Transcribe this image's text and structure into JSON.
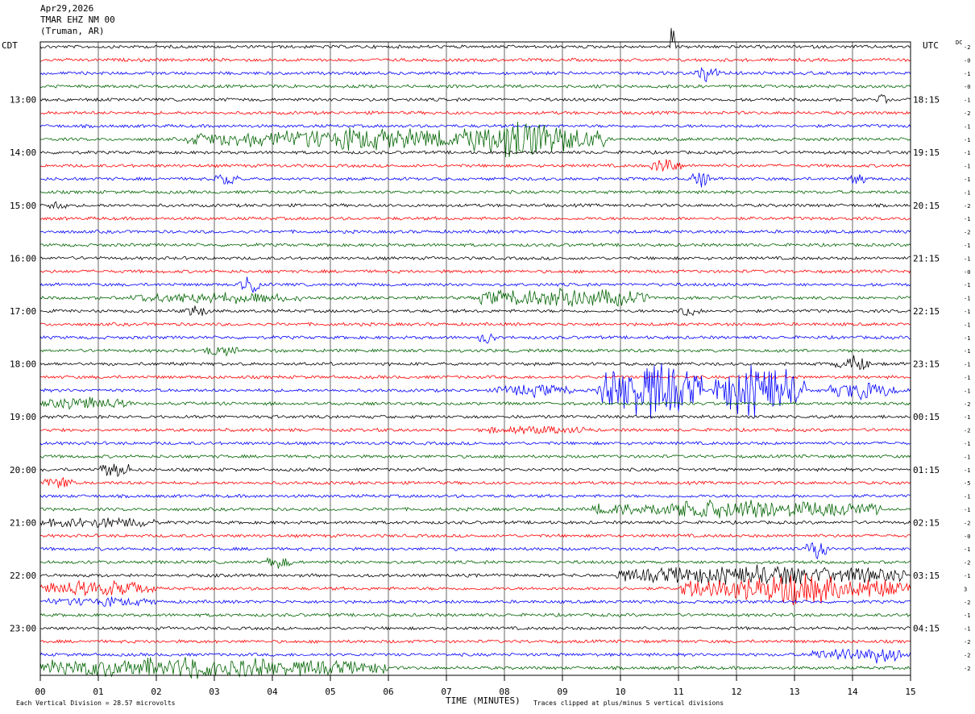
{
  "header": {
    "date": "Apr29,2026",
    "station": "TMAR EHZ NM 00",
    "location": "(Truman, AR)"
  },
  "left_zone_label": "CDT",
  "right_zone_label": "UTC",
  "dc_label": "DC",
  "footer": {
    "scale_note": "Each Vertical Division =   28.57 microvolts",
    "clip_note": "Traces clipped at plus/minus 5 vertical divisions"
  },
  "colors": [
    "#000000",
    "#ff0000",
    "#0000ff",
    "#006400"
  ],
  "chart_data": {
    "type": "line",
    "xlabel": "TIME (MINUTES)",
    "xlim": [
      0,
      15
    ],
    "x_ticks": [
      "00",
      "01",
      "02",
      "03",
      "04",
      "05",
      "06",
      "07",
      "08",
      "09",
      "10",
      "11",
      "12",
      "13",
      "14",
      "15"
    ],
    "row_count": 48,
    "left_hour_labels": [
      {
        "row": 4,
        "text": "13:00"
      },
      {
        "row": 8,
        "text": "14:00"
      },
      {
        "row": 12,
        "text": "15:00"
      },
      {
        "row": 16,
        "text": "16:00"
      },
      {
        "row": 20,
        "text": "17:00"
      },
      {
        "row": 24,
        "text": "18:00"
      },
      {
        "row": 28,
        "text": "19:00"
      },
      {
        "row": 32,
        "text": "20:00"
      },
      {
        "row": 36,
        "text": "21:00"
      },
      {
        "row": 40,
        "text": "22:00"
      },
      {
        "row": 44,
        "text": "23:00"
      }
    ],
    "right_hour_labels": [
      {
        "row": 4,
        "text": "18:15"
      },
      {
        "row": 8,
        "text": "19:15"
      },
      {
        "row": 12,
        "text": "20:15"
      },
      {
        "row": 16,
        "text": "21:15"
      },
      {
        "row": 20,
        "text": "22:15"
      },
      {
        "row": 24,
        "text": "23:15"
      },
      {
        "row": 28,
        "text": "00:15"
      },
      {
        "row": 32,
        "text": "01:15"
      },
      {
        "row": 36,
        "text": "02:15"
      },
      {
        "row": 40,
        "text": "03:15"
      },
      {
        "row": 44,
        "text": "04:15"
      }
    ],
    "dc_offsets": [
      "-2",
      "-0",
      "-1",
      "-0",
      "-1",
      "-2",
      "-1",
      "-1",
      "-1",
      "-1",
      "-1",
      "-1",
      "-2",
      "-1",
      "-2",
      "-1",
      "-1",
      "-0",
      "-1",
      "-1",
      "-1",
      "-1",
      "-1",
      "-1",
      "-1",
      "-1",
      "-1",
      "-2",
      "-1",
      "-2",
      "-1",
      "-1",
      "-1",
      "-5",
      "-1",
      "-1",
      "-2",
      "-0",
      "-1",
      "-2",
      "-1",
      "3",
      "-2",
      "-1",
      "-1",
      "-2",
      "-2",
      "-2"
    ],
    "bursts": [
      {
        "row": 0,
        "x": 10.9,
        "w": 0.08,
        "amp": 4.5
      },
      {
        "row": 2,
        "x": 11.5,
        "w": 0.5,
        "amp": 1.2
      },
      {
        "row": 4,
        "x": 14.5,
        "w": 0.2,
        "amp": 1.0
      },
      {
        "row": 7,
        "x": 5.5,
        "w": 6.0,
        "amp": 1.6
      },
      {
        "row": 7,
        "x": 8.5,
        "w": 2.5,
        "amp": 2.6
      },
      {
        "row": 9,
        "x": 10.8,
        "w": 0.6,
        "amp": 1.2
      },
      {
        "row": 10,
        "x": 3.2,
        "w": 0.4,
        "amp": 1.0
      },
      {
        "row": 10,
        "x": 11.4,
        "w": 0.4,
        "amp": 1.2
      },
      {
        "row": 10,
        "x": 14.1,
        "w": 0.3,
        "amp": 0.9
      },
      {
        "row": 12,
        "x": 0.3,
        "w": 0.3,
        "amp": 0.8
      },
      {
        "row": 18,
        "x": 3.6,
        "w": 0.4,
        "amp": 1.6
      },
      {
        "row": 19,
        "x": 3.0,
        "w": 3.0,
        "amp": 0.8
      },
      {
        "row": 19,
        "x": 9.0,
        "w": 3.0,
        "amp": 1.6
      },
      {
        "row": 20,
        "x": 2.7,
        "w": 0.4,
        "amp": 0.9
      },
      {
        "row": 20,
        "x": 11.2,
        "w": 0.4,
        "amp": 0.9
      },
      {
        "row": 22,
        "x": 7.7,
        "w": 0.3,
        "amp": 0.9
      },
      {
        "row": 23,
        "x": 3.1,
        "w": 0.6,
        "amp": 0.9
      },
      {
        "row": 24,
        "x": 14.0,
        "w": 0.6,
        "amp": 1.2
      },
      {
        "row": 26,
        "x": 8.5,
        "w": 1.4,
        "amp": 0.8
      },
      {
        "row": 26,
        "x": 10.5,
        "w": 1.8,
        "amp": 5.0
      },
      {
        "row": 26,
        "x": 12.4,
        "w": 1.6,
        "amp": 5.0
      },
      {
        "row": 26,
        "x": 14.2,
        "w": 1.2,
        "amp": 1.4
      },
      {
        "row": 27,
        "x": 0.8,
        "w": 1.6,
        "amp": 0.8
      },
      {
        "row": 29,
        "x": 8.5,
        "w": 2.0,
        "amp": 0.5
      },
      {
        "row": 32,
        "x": 1.3,
        "w": 0.6,
        "amp": 1.2
      },
      {
        "row": 33,
        "x": 0.3,
        "w": 0.5,
        "amp": 1.0
      },
      {
        "row": 35,
        "x": 12.0,
        "w": 5.0,
        "amp": 1.5
      },
      {
        "row": 36,
        "x": 1.0,
        "w": 2.0,
        "amp": 0.8
      },
      {
        "row": 38,
        "x": 13.4,
        "w": 0.4,
        "amp": 1.6
      },
      {
        "row": 39,
        "x": 4.1,
        "w": 0.5,
        "amp": 0.8
      },
      {
        "row": 40,
        "x": 12.4,
        "w": 5.0,
        "amp": 1.6
      },
      {
        "row": 41,
        "x": 1.0,
        "w": 2.0,
        "amp": 1.2
      },
      {
        "row": 41,
        "x": 13.0,
        "w": 4.0,
        "amp": 2.4
      },
      {
        "row": 42,
        "x": 1.0,
        "w": 2.0,
        "amp": 0.6
      },
      {
        "row": 46,
        "x": 14.2,
        "w": 1.8,
        "amp": 1.2
      },
      {
        "row": 47,
        "x": 2.5,
        "w": 7.0,
        "amp": 1.6
      }
    ]
  }
}
